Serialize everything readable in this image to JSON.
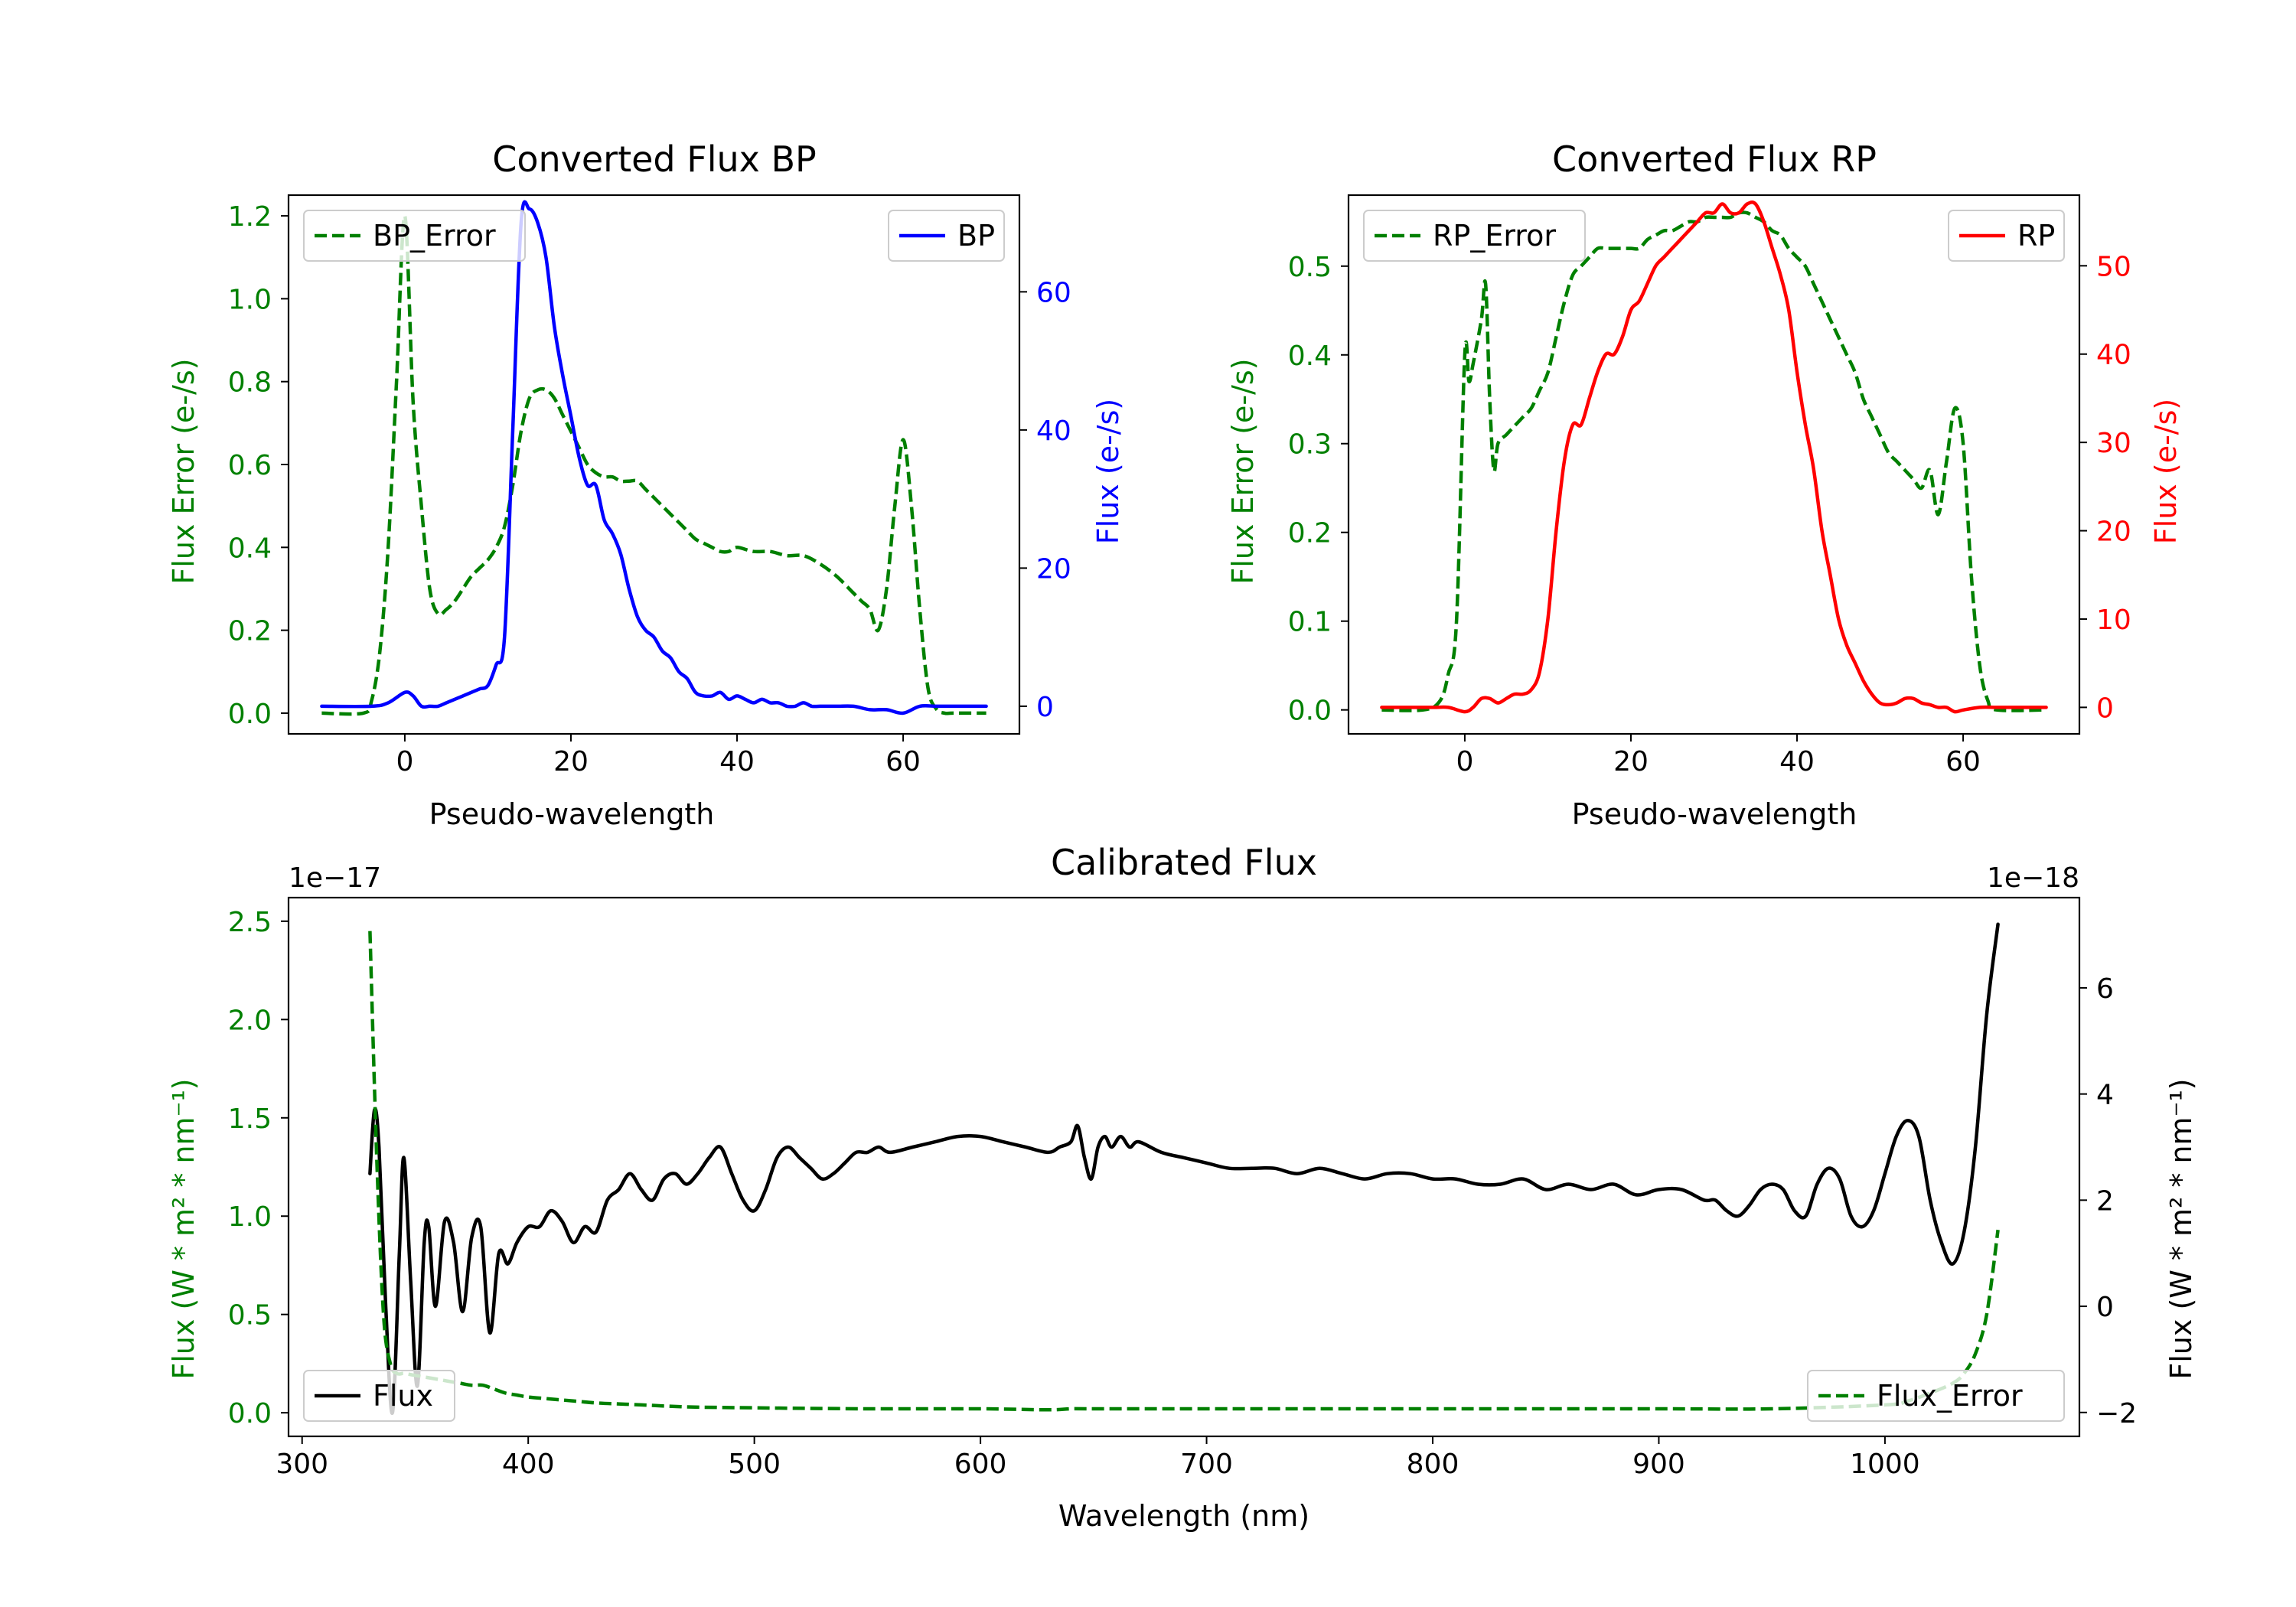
{
  "chart_data": [
    {
      "id": "bp",
      "type": "line",
      "title": "Converted Flux BP",
      "xlabel": "Pseudo-wavelength",
      "xlim": [
        -14,
        74
      ],
      "xticks": [
        0,
        20,
        40,
        60
      ],
      "xtick_labels": [
        "0",
        "20",
        "40",
        "60"
      ],
      "left_axis": {
        "label": "Flux Error (e-/s)",
        "color": "#008000",
        "lim": [
          -0.05,
          1.25
        ],
        "ticks": [
          0,
          0.2,
          0.4,
          0.6,
          0.8,
          1.0,
          1.2
        ],
        "tick_labels": [
          "0.0",
          "0.2",
          "0.4",
          "0.6",
          "0.8",
          "1.0",
          "1.2"
        ]
      },
      "right_axis": {
        "label": "Flux (e-/s)",
        "color": "#0000ff",
        "lim": [
          -4,
          74
        ],
        "ticks": [
          0,
          20,
          40,
          60
        ],
        "tick_labels": [
          "0",
          "20",
          "40",
          "60"
        ]
      },
      "series": [
        {
          "name": "BP_Error",
          "axis": "left",
          "color": "#008000",
          "dash": true,
          "x": [
            -10,
            -5,
            -4,
            -3,
            -2,
            -1,
            0,
            1,
            2,
            3,
            4,
            5,
            6,
            7,
            8,
            9,
            10,
            11,
            12,
            13,
            14,
            15,
            16,
            17,
            18,
            19,
            20,
            21,
            22,
            23,
            24,
            25,
            26,
            27,
            28,
            29,
            30,
            31,
            32,
            33,
            34,
            35,
            36,
            37,
            38,
            39,
            40,
            42,
            44,
            46,
            48,
            50,
            52,
            54,
            55,
            56,
            57,
            58,
            59,
            60,
            61,
            62,
            63,
            64,
            65,
            66,
            70
          ],
          "y": [
            0,
            0,
            0.03,
            0.15,
            0.4,
            0.8,
            1.2,
            0.75,
            0.5,
            0.3,
            0.24,
            0.25,
            0.27,
            0.3,
            0.33,
            0.35,
            0.37,
            0.4,
            0.45,
            0.55,
            0.68,
            0.76,
            0.78,
            0.78,
            0.76,
            0.72,
            0.68,
            0.64,
            0.6,
            0.58,
            0.57,
            0.57,
            0.56,
            0.56,
            0.56,
            0.54,
            0.52,
            0.5,
            0.48,
            0.46,
            0.44,
            0.42,
            0.41,
            0.4,
            0.39,
            0.39,
            0.4,
            0.39,
            0.39,
            0.38,
            0.38,
            0.36,
            0.33,
            0.29,
            0.27,
            0.25,
            0.2,
            0.3,
            0.5,
            0.66,
            0.5,
            0.25,
            0.06,
            0.01,
            0,
            0,
            0
          ]
        },
        {
          "name": "BP",
          "axis": "right",
          "color": "#0000ff",
          "dash": false,
          "x": [
            -10,
            -4,
            -2,
            0,
            1,
            2,
            3,
            4,
            5,
            6,
            7,
            8,
            9,
            10,
            11,
            12,
            13,
            14,
            15,
            16,
            17,
            18,
            19,
            20,
            21,
            22,
            23,
            24,
            25,
            26,
            27,
            28,
            29,
            30,
            31,
            32,
            33,
            34,
            35,
            36,
            37,
            38,
            39,
            40,
            41,
            42,
            43,
            44,
            45,
            46,
            47,
            48,
            49,
            50,
            52,
            54,
            56,
            58,
            60,
            62,
            64,
            66,
            70
          ],
          "y": [
            0,
            0,
            0.5,
            2,
            1.5,
            0,
            0,
            0,
            0.5,
            1,
            1.5,
            2,
            2.5,
            3,
            6,
            10,
            40,
            70,
            72,
            70,
            65,
            55,
            48,
            42,
            36,
            32,
            32,
            27,
            25,
            22,
            17,
            13,
            11,
            10,
            8,
            7,
            5,
            4,
            2,
            1.5,
            1.5,
            2,
            1,
            1.5,
            1,
            0.5,
            1,
            0.5,
            0.5,
            0,
            0,
            0.5,
            0,
            0,
            0,
            0,
            -0.5,
            -0.5,
            -1,
            0,
            0,
            0,
            0
          ]
        }
      ],
      "legends": [
        {
          "position": "upper left",
          "entries": [
            "BP_Error"
          ]
        },
        {
          "position": "upper right",
          "entries": [
            "BP"
          ]
        }
      ]
    },
    {
      "id": "rp",
      "type": "line",
      "title": "Converted Flux RP",
      "xlabel": "Pseudo-wavelength",
      "xlim": [
        -14,
        74
      ],
      "xticks": [
        0,
        20,
        40,
        60
      ],
      "xtick_labels": [
        "0",
        "20",
        "40",
        "60"
      ],
      "left_axis": {
        "label": "Flux Error (e-/s)",
        "color": "#008000",
        "lim": [
          -0.027,
          0.58
        ],
        "ticks": [
          0,
          0.1,
          0.2,
          0.3,
          0.4,
          0.5
        ],
        "tick_labels": [
          "0.0",
          "0.1",
          "0.2",
          "0.3",
          "0.4",
          "0.5"
        ]
      },
      "right_axis": {
        "label": "Flux (e-/s)",
        "color": "#ff0000",
        "lim": [
          -3,
          58
        ],
        "ticks": [
          0,
          10,
          20,
          30,
          40,
          50
        ],
        "tick_labels": [
          "0",
          "10",
          "20",
          "30",
          "40",
          "50"
        ]
      },
      "series": [
        {
          "name": "RP_Error",
          "axis": "left",
          "color": "#008000",
          "dash": true,
          "x": [
            -10,
            -5,
            -3,
            -2,
            -1,
            0,
            0.5,
            1,
            2,
            2.5,
            3,
            3.5,
            4,
            5,
            6,
            7,
            8,
            9,
            10,
            11,
            12,
            13,
            14,
            15,
            16,
            17,
            18,
            19,
            20,
            21,
            22,
            23,
            24,
            25,
            26,
            27,
            28,
            29,
            30,
            31,
            32,
            33,
            34,
            35,
            36,
            37,
            38,
            39,
            40,
            41,
            42,
            43,
            44,
            45,
            46,
            47,
            48,
            49,
            50,
            51,
            52,
            53,
            54,
            55,
            56,
            57,
            58,
            59,
            60,
            61,
            62,
            63,
            64,
            70
          ],
          "y": [
            0,
            0,
            0.01,
            0.04,
            0.1,
            0.4,
            0.37,
            0.39,
            0.44,
            0.48,
            0.35,
            0.27,
            0.3,
            0.31,
            0.32,
            0.33,
            0.34,
            0.36,
            0.38,
            0.42,
            0.46,
            0.49,
            0.5,
            0.51,
            0.52,
            0.52,
            0.52,
            0.52,
            0.52,
            0.52,
            0.53,
            0.535,
            0.54,
            0.54,
            0.545,
            0.55,
            0.55,
            0.555,
            0.555,
            0.555,
            0.555,
            0.56,
            0.56,
            0.555,
            0.55,
            0.54,
            0.535,
            0.52,
            0.51,
            0.5,
            0.48,
            0.46,
            0.44,
            0.42,
            0.4,
            0.38,
            0.35,
            0.33,
            0.31,
            0.29,
            0.28,
            0.27,
            0.26,
            0.25,
            0.27,
            0.22,
            0.28,
            0.34,
            0.3,
            0.15,
            0.05,
            0.01,
            0,
            0
          ]
        },
        {
          "name": "RP",
          "axis": "right",
          "color": "#ff0000",
          "dash": false,
          "x": [
            -10,
            -4,
            -2,
            0,
            1,
            2,
            3,
            4,
            5,
            6,
            7,
            8,
            9,
            10,
            11,
            12,
            13,
            14,
            15,
            16,
            17,
            18,
            19,
            20,
            21,
            22,
            23,
            24,
            25,
            26,
            27,
            28,
            29,
            30,
            31,
            32,
            33,
            34,
            35,
            36,
            37,
            38,
            39,
            40,
            41,
            42,
            43,
            44,
            45,
            46,
            47,
            48,
            49,
            50,
            51,
            52,
            53,
            54,
            55,
            56,
            57,
            58,
            59,
            60,
            62,
            64,
            66,
            70
          ],
          "y": [
            0,
            0,
            0,
            -0.5,
            0,
            1,
            1,
            0.5,
            1,
            1.5,
            1.5,
            2,
            4,
            10,
            20,
            28,
            32,
            32,
            35,
            38,
            40,
            40,
            42,
            45,
            46,
            48,
            50,
            51,
            52,
            53,
            54,
            55,
            56,
            56,
            57,
            56,
            56,
            57,
            57,
            55,
            52,
            49,
            45,
            38,
            32,
            27,
            20,
            15,
            10,
            7,
            5,
            3,
            1.5,
            0.5,
            0.3,
            0.5,
            1,
            1,
            0.5,
            0.3,
            0,
            0,
            -0.5,
            -0.3,
            0,
            0,
            0,
            0
          ]
        }
      ],
      "legends": [
        {
          "position": "upper left",
          "entries": [
            "RP_Error"
          ]
        },
        {
          "position": "upper right",
          "entries": [
            "RP"
          ]
        }
      ]
    },
    {
      "id": "cal",
      "type": "line",
      "title": "Calibrated Flux",
      "xlabel": "Wavelength (nm)",
      "xlim": [
        294,
        1086
      ],
      "xticks": [
        300,
        400,
        500,
        600,
        700,
        800,
        900,
        1000
      ],
      "xtick_labels": [
        "300",
        "400",
        "500",
        "600",
        "700",
        "800",
        "900",
        "1000"
      ],
      "left_axis": {
        "label": "Flux (W * m² * nm⁻¹)",
        "color": "#008000",
        "scale_text": "1e−17",
        "lim": [
          -0.12,
          2.62
        ],
        "ticks": [
          0,
          0.5,
          1.0,
          1.5,
          2.0,
          2.5
        ],
        "tick_labels": [
          "0.0",
          "0.5",
          "1.0",
          "1.5",
          "2.0",
          "2.5"
        ]
      },
      "right_axis": {
        "label": "Flux (W * m² * nm⁻¹)",
        "color": "#000000",
        "scale_text": "1e−18",
        "lim": [
          -2.45,
          7.7
        ],
        "ticks": [
          -2,
          0,
          2,
          4,
          6
        ],
        "tick_labels": [
          "−2",
          "0",
          "2",
          "4",
          "6"
        ]
      },
      "series": [
        {
          "name": "Flux",
          "axis": "right",
          "color": "#000000",
          "dash": false,
          "x": [
            330,
            332,
            334,
            337,
            340,
            343,
            345,
            348,
            351,
            354,
            356,
            359,
            363,
            367,
            371,
            375,
            379,
            383,
            387,
            391,
            395,
            400,
            405,
            410,
            415,
            420,
            425,
            430,
            435,
            440,
            445,
            450,
            455,
            460,
            465,
            470,
            475,
            480,
            485,
            490,
            495,
            500,
            505,
            510,
            515,
            520,
            525,
            530,
            535,
            540,
            545,
            550,
            555,
            560,
            570,
            580,
            590,
            600,
            610,
            620,
            630,
            635,
            640,
            643,
            646,
            649,
            652,
            655,
            658,
            662,
            666,
            670,
            680,
            690,
            700,
            710,
            720,
            730,
            740,
            750,
            760,
            770,
            780,
            790,
            800,
            810,
            820,
            830,
            840,
            850,
            860,
            870,
            880,
            890,
            900,
            910,
            920,
            925,
            930,
            935,
            940,
            945,
            950,
            955,
            960,
            965,
            970,
            975,
            980,
            985,
            990,
            995,
            1000,
            1005,
            1010,
            1015,
            1020,
            1025,
            1030,
            1035,
            1040,
            1045,
            1050
          ],
          "y": [
            2.5,
            3.7,
            3,
            0,
            -2,
            1,
            2.8,
            0.5,
            -1.5,
            1.2,
            1.5,
            0,
            1.6,
            1.2,
            -0.1,
            1.3,
            1.5,
            -0.5,
            1,
            0.8,
            1.2,
            1.5,
            1.5,
            1.8,
            1.6,
            1.2,
            1.5,
            1.4,
            2,
            2.2,
            2.5,
            2.2,
            2,
            2.4,
            2.5,
            2.3,
            2.5,
            2.8,
            3,
            2.5,
            2,
            1.8,
            2.2,
            2.8,
            3,
            2.8,
            2.6,
            2.4,
            2.5,
            2.7,
            2.9,
            2.9,
            3,
            2.9,
            3,
            3.1,
            3.2,
            3.2,
            3.1,
            3,
            2.9,
            3,
            3.1,
            3.4,
            2.8,
            2.4,
            3,
            3.2,
            3,
            3.2,
            3,
            3.1,
            2.9,
            2.8,
            2.7,
            2.6,
            2.6,
            2.6,
            2.5,
            2.6,
            2.5,
            2.4,
            2.5,
            2.5,
            2.4,
            2.4,
            2.3,
            2.3,
            2.4,
            2.2,
            2.3,
            2.2,
            2.3,
            2.1,
            2.2,
            2.2,
            2,
            2,
            1.8,
            1.7,
            1.9,
            2.2,
            2.3,
            2.2,
            1.8,
            1.7,
            2.3,
            2.6,
            2.4,
            1.7,
            1.5,
            1.8,
            2.5,
            3.2,
            3.5,
            3.2,
            2,
            1.2,
            0.8,
            1.4,
            3,
            5.5,
            7.2
          ]
        },
        {
          "name": "Flux_Error",
          "axis": "left",
          "color": "#008000",
          "dash": true,
          "x": [
            330,
            333,
            336,
            339,
            342,
            345,
            350,
            355,
            360,
            365,
            370,
            375,
            380,
            385,
            390,
            395,
            400,
            410,
            420,
            430,
            440,
            450,
            470,
            500,
            550,
            600,
            630,
            640,
            650,
            700,
            800,
            900,
            950,
            1000,
            1010,
            1020,
            1030,
            1035,
            1040,
            1045,
            1050
          ],
          "y": [
            2.45,
            1.3,
            0.5,
            0.25,
            0.2,
            0.2,
            0.19,
            0.18,
            0.17,
            0.16,
            0.15,
            0.14,
            0.14,
            0.12,
            0.1,
            0.09,
            0.08,
            0.07,
            0.06,
            0.05,
            0.045,
            0.04,
            0.03,
            0.025,
            0.02,
            0.02,
            0.015,
            0.02,
            0.02,
            0.02,
            0.02,
            0.02,
            0.02,
            0.04,
            0.06,
            0.1,
            0.15,
            0.2,
            0.3,
            0.5,
            0.93
          ]
        }
      ],
      "legends": [
        {
          "position": "lower left",
          "entries": [
            "Flux"
          ]
        },
        {
          "position": "lower right",
          "entries": [
            "Flux_Error"
          ]
        }
      ]
    }
  ]
}
